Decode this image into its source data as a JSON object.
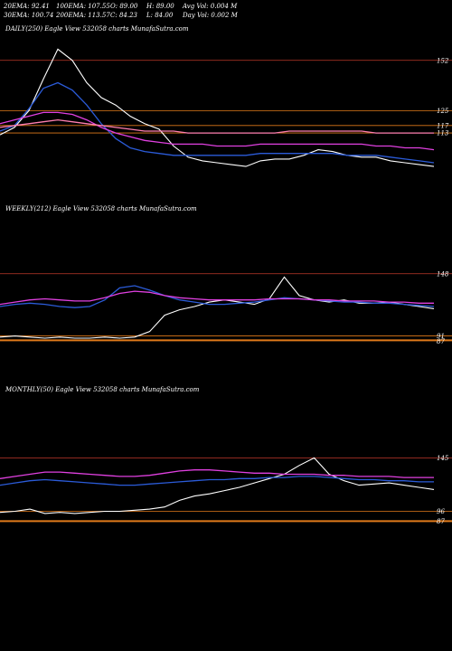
{
  "header": {
    "ema20": "20EMA: 92.41",
    "ema100": "100EMA: 107.55",
    "open": "O: 89.00",
    "high": "H: 89.00",
    "avg_vol": "Avg Vol: 0.004  M",
    "ema30": "30EMA: 100.74",
    "ema200": "200EMA: 113.57",
    "close": "C: 84.23",
    "low": "L: 84.00",
    "day_vol": "Day Vol: 0.002  M"
  },
  "colors": {
    "background": "#000000",
    "price": "#ffffff",
    "ema_blue": "#2b5bd8",
    "ema_magenta": "#e040e0",
    "ema_pink": "#ff7fb0",
    "ema_gray": "#b0b0b0",
    "level_orange": "#e07a1a",
    "level_red": "#c0392b"
  },
  "chart_data": [
    {
      "type": "line",
      "title": "DAILY(250) Eagle  View  532058 charts MunafaSutra.com",
      "y_tick_labels": [
        "152",
        "125",
        "117",
        "113"
      ],
      "series": [
        {
          "role": "price",
          "color": "#ffffff",
          "values": [
            112,
            116,
            125,
            142,
            158,
            152,
            140,
            132,
            128,
            122,
            118,
            115,
            106,
            100,
            98,
            97,
            96,
            95,
            98,
            99,
            99,
            101,
            104,
            103,
            101,
            100,
            100,
            98,
            97,
            96,
            95
          ]
        },
        {
          "role": "ema-fast",
          "color": "#2b5bd8",
          "values": [
            114,
            117,
            126,
            137,
            140,
            136,
            128,
            118,
            110,
            105,
            103,
            102,
            101,
            101,
            101,
            101,
            101,
            101,
            102,
            102,
            102,
            102,
            102,
            102,
            101,
            101,
            101,
            100,
            99,
            98,
            97
          ]
        },
        {
          "role": "ema-slow",
          "color": "#e040e0",
          "values": [
            118,
            120,
            122,
            124,
            124,
            123,
            120,
            116,
            113,
            111,
            109,
            108,
            107,
            107,
            107,
            106,
            106,
            106,
            107,
            107,
            107,
            107,
            107,
            107,
            107,
            107,
            106,
            106,
            105,
            105,
            104
          ]
        },
        {
          "role": "ema-200",
          "color": "#ff7fb0",
          "values": [
            116,
            117,
            118,
            119,
            120,
            119,
            118,
            117,
            116,
            115,
            114,
            114,
            114,
            113,
            113,
            113,
            113,
            113,
            113,
            113,
            114,
            114,
            114,
            114,
            114,
            114,
            113,
            113,
            113,
            113,
            113
          ]
        }
      ],
      "levels": [
        152,
        125,
        117,
        113
      ]
    },
    {
      "type": "line",
      "title": "WEEKLY(212) Eagle  View  532058 charts MunafaSutra.com",
      "y_tick_labels": [
        "148",
        "91",
        "87"
      ],
      "series": [
        {
          "role": "price",
          "color": "#ffffff",
          "values": [
            90,
            91,
            90,
            89,
            90,
            89,
            89,
            90,
            89,
            90,
            95,
            110,
            115,
            118,
            122,
            124,
            122,
            120,
            125,
            145,
            128,
            124,
            122,
            124,
            121,
            121,
            122,
            120,
            118,
            116
          ]
        },
        {
          "role": "ema-fast",
          "color": "#2b5bd8",
          "values": [
            118,
            120,
            121,
            120,
            118,
            117,
            118,
            124,
            135,
            137,
            133,
            128,
            124,
            122,
            120,
            120,
            121,
            122,
            124,
            126,
            125,
            124,
            123,
            122,
            122,
            121,
            121,
            120,
            119,
            118
          ]
        },
        {
          "role": "ema-slow",
          "color": "#e040e0",
          "values": [
            120,
            122,
            124,
            125,
            124,
            123,
            123,
            126,
            130,
            132,
            131,
            128,
            126,
            125,
            124,
            124,
            124,
            124,
            125,
            125,
            125,
            124,
            124,
            123,
            123,
            123,
            122,
            122,
            121,
            121
          ]
        }
      ],
      "levels": [
        148,
        91,
        87
      ]
    },
    {
      "type": "line",
      "title": "MONTHLY(50) Eagle  View  532058 charts MunafaSutra.com",
      "y_tick_labels": [
        "145",
        "96",
        "87"
      ],
      "series": [
        {
          "role": "price",
          "color": "#ffffff",
          "values": [
            95,
            96,
            98,
            94,
            95,
            94,
            95,
            96,
            96,
            97,
            98,
            100,
            106,
            110,
            112,
            115,
            118,
            122,
            126,
            130,
            138,
            145,
            130,
            124,
            120,
            121,
            122,
            120,
            118,
            116
          ]
        },
        {
          "role": "ema-fast",
          "color": "#2b5bd8",
          "values": [
            120,
            122,
            124,
            125,
            124,
            123,
            122,
            121,
            120,
            120,
            121,
            122,
            123,
            124,
            125,
            125,
            126,
            126,
            127,
            127,
            128,
            128,
            127,
            126,
            125,
            125,
            124,
            124,
            123,
            123
          ]
        },
        {
          "role": "ema-slow",
          "color": "#e040e0",
          "values": [
            126,
            128,
            130,
            132,
            132,
            131,
            130,
            129,
            128,
            128,
            129,
            131,
            133,
            134,
            134,
            133,
            132,
            131,
            131,
            130,
            130,
            130,
            129,
            129,
            128,
            128,
            128,
            127,
            127,
            127
          ]
        }
      ],
      "levels": [
        145,
        96,
        87
      ]
    }
  ]
}
